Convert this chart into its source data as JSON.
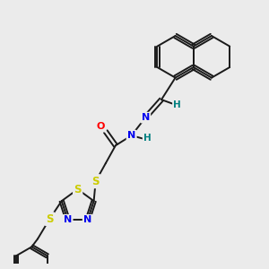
{
  "background_color": "#ebebeb",
  "bond_color": "#1a1a1a",
  "atom_colors": {
    "S": "#cccc00",
    "N": "#0000ee",
    "O": "#ff0000",
    "H": "#008080",
    "C": "#1a1a1a"
  },
  "figsize": [
    3.0,
    3.0
  ],
  "dpi": 100,
  "lw": 1.4,
  "font_size": 7.5
}
